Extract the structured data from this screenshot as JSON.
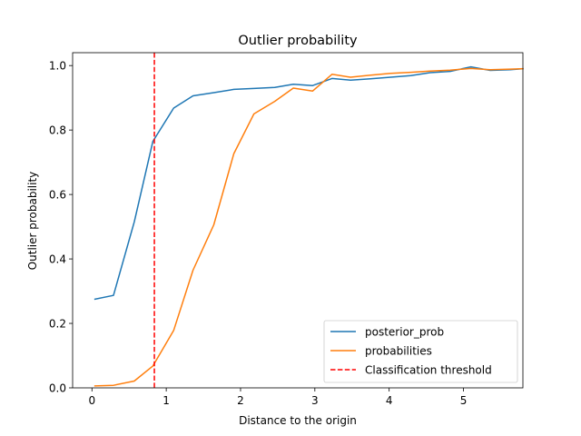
{
  "chart_data": {
    "type": "line",
    "title": "Outlier probability",
    "xlabel": "Distance to the origin",
    "ylabel": "Outlier probability",
    "xlim": [
      -0.26,
      5.8
    ],
    "ylim": [
      0.0,
      1.04
    ],
    "xticks": [
      0,
      1,
      2,
      3,
      4,
      5
    ],
    "yticks": [
      0.0,
      0.2,
      0.4,
      0.6,
      0.8,
      1.0
    ],
    "legend_position": "lower-right",
    "grid": false,
    "x": [
      0.04,
      0.29,
      0.57,
      0.82,
      1.1,
      1.36,
      1.64,
      1.91,
      2.18,
      2.46,
      2.71,
      2.97,
      3.23,
      3.48,
      3.75,
      4.02,
      4.29,
      4.55,
      4.82,
      5.1,
      5.36,
      5.63,
      5.8
    ],
    "series": [
      {
        "name": "posterior_prob",
        "color": "#1f77b4",
        "values": [
          0.275,
          0.287,
          0.515,
          0.765,
          0.868,
          0.906,
          0.916,
          0.926,
          0.929,
          0.932,
          0.942,
          0.938,
          0.96,
          0.955,
          0.959,
          0.964,
          0.969,
          0.978,
          0.982,
          0.996,
          0.985,
          0.987,
          0.99
        ]
      },
      {
        "name": "probabilities",
        "color": "#ff7f0e",
        "values": [
          0.006,
          0.008,
          0.021,
          0.068,
          0.178,
          0.365,
          0.506,
          0.727,
          0.85,
          0.889,
          0.93,
          0.921,
          0.973,
          0.964,
          0.97,
          0.976,
          0.979,
          0.983,
          0.986,
          0.991,
          0.987,
          0.989,
          0.99
        ]
      }
    ],
    "threshold": {
      "name": "Classification threshold",
      "x": 0.84,
      "color": "#ff0000",
      "style": "dashed"
    }
  }
}
